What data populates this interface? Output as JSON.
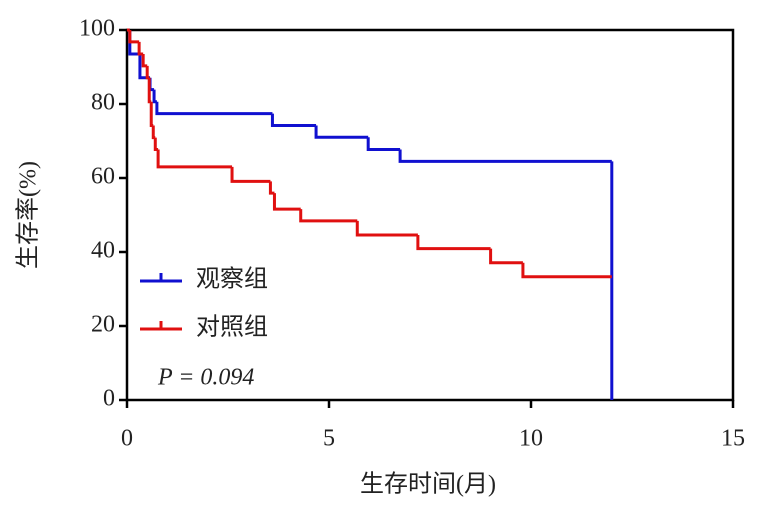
{
  "chart_data": {
    "type": "step",
    "xlabel": "生存时间(月)",
    "ylabel": "生存率(%)",
    "xlim": [
      0,
      15
    ],
    "ylim": [
      0,
      100
    ],
    "xticks": [
      0,
      5,
      10,
      15
    ],
    "yticks": [
      0,
      20,
      40,
      60,
      80,
      100
    ],
    "frame": true,
    "legend": "left",
    "annotation": "P = 0.094",
    "series": [
      {
        "name": "观察组",
        "color": "#1010d0",
        "x": [
          0,
          0.07,
          0.32,
          0.57,
          0.67,
          0.74,
          3.6,
          4.68,
          5.97,
          6.76,
          12.0
        ],
        "values": [
          100,
          93.5,
          87.1,
          83.9,
          80.6,
          77.4,
          74.2,
          71.0,
          67.7,
          64.5,
          0
        ]
      },
      {
        "name": "对照组",
        "color": "#e01010",
        "x": [
          0,
          0.07,
          0.3,
          0.4,
          0.5,
          0.55,
          0.6,
          0.65,
          0.7,
          0.77,
          2.6,
          3.55,
          3.65,
          4.3,
          5.7,
          7.2,
          9.0,
          9.8,
          12.0
        ],
        "values": [
          100,
          96.8,
          93.5,
          90.3,
          87.1,
          80.6,
          74.2,
          70.9,
          67.7,
          63.0,
          59.1,
          55.9,
          51.6,
          48.4,
          44.6,
          40.9,
          37.1,
          33.3,
          33.3
        ]
      }
    ]
  }
}
